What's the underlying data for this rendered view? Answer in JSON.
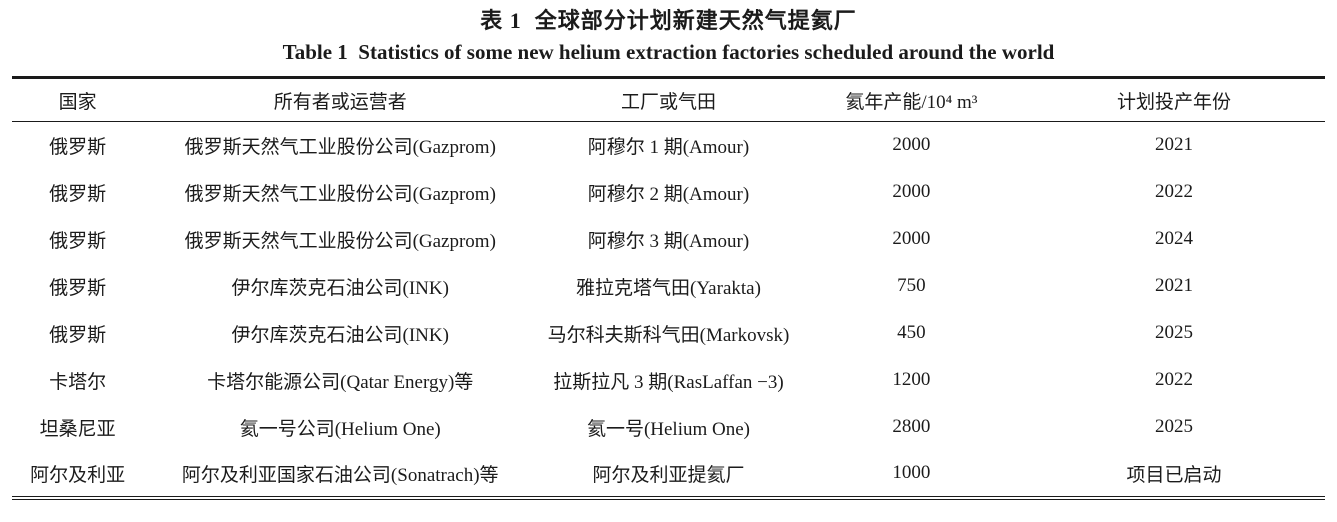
{
  "table": {
    "caption_zh": "表 1  全球部分计划新建天然气提氦厂",
    "caption_en": "Table 1  Statistics of some new helium extraction factories scheduled around the world",
    "columns": [
      "国家",
      "所有者或运营者",
      "工厂或气田",
      "氦年产能/10⁴ m³",
      "计划投产年份"
    ],
    "rows": [
      [
        "俄罗斯",
        "俄罗斯天然气工业股份公司(Gazprom)",
        "阿穆尔 1 期(Amour)",
        "2000",
        "2021"
      ],
      [
        "俄罗斯",
        "俄罗斯天然气工业股份公司(Gazprom)",
        "阿穆尔 2 期(Amour)",
        "2000",
        "2022"
      ],
      [
        "俄罗斯",
        "俄罗斯天然气工业股份公司(Gazprom)",
        "阿穆尔 3 期(Amour)",
        "2000",
        "2024"
      ],
      [
        "俄罗斯",
        "伊尔库茨克石油公司(INK)",
        "雅拉克塔气田(Yarakta)",
        "750",
        "2021"
      ],
      [
        "俄罗斯",
        "伊尔库茨克石油公司(INK)",
        "马尔科夫斯科气田(Markovsk)",
        "450",
        "2025"
      ],
      [
        "卡塔尔",
        "卡塔尔能源公司(Qatar Energy)等",
        "拉斯拉凡 3 期(RasLaffan −3)",
        "1200",
        "2022"
      ],
      [
        "坦桑尼亚",
        "氦一号公司(Helium One)",
        "氦一号(Helium One)",
        "2800",
        "2025"
      ],
      [
        "阿尔及利亚",
        "阿尔及利亚国家石油公司(Sonatrach)等",
        "阿尔及利亚提氦厂",
        "1000",
        "项目已启动"
      ]
    ],
    "colors": {
      "text": "#1b1b1b",
      "rule": "#1a1a1a",
      "background": "#ffffff"
    }
  }
}
